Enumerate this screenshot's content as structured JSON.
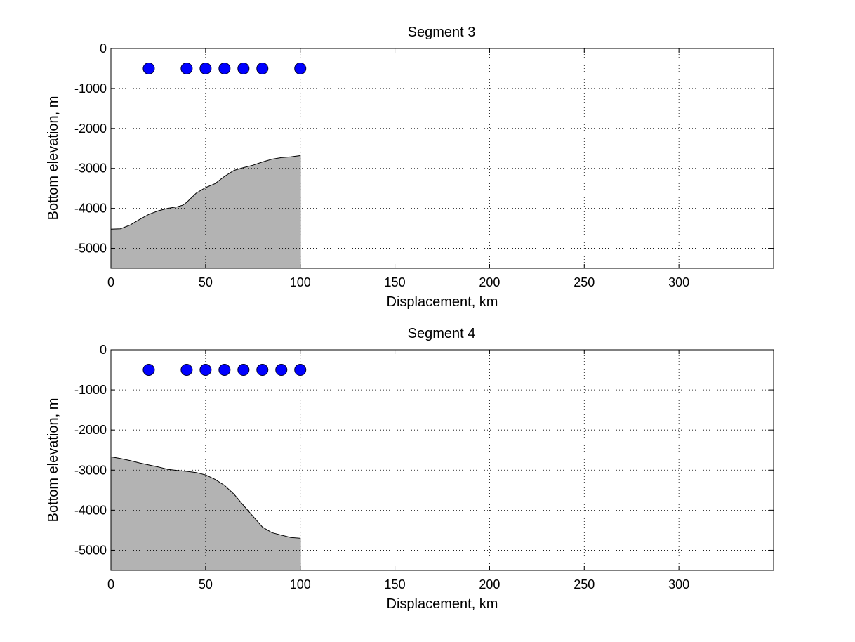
{
  "colors": {
    "terrain_fill": "#b3b3b3",
    "marker_fill": "#0000ff",
    "marker_edge": "#000033",
    "grid": "#000000"
  },
  "chart_data": [
    {
      "type": "area",
      "title": "Segment 3",
      "xlabel": "Displacement, km",
      "ylabel": "Bottom elevation, m",
      "xlim": [
        0,
        350
      ],
      "ylim": [
        -5500,
        0
      ],
      "xticks": [
        0,
        50,
        100,
        150,
        200,
        250,
        300
      ],
      "yticks": [
        0,
        -1000,
        -2000,
        -3000,
        -4000,
        -5000
      ],
      "grid": true,
      "legend": "none",
      "bathymetry": {
        "x": [
          0,
          5,
          10,
          15,
          20,
          25,
          30,
          35,
          38,
          40,
          45,
          50,
          55,
          60,
          65,
          70,
          75,
          80,
          85,
          90,
          95,
          100
        ],
        "y": [
          -4520,
          -4510,
          -4420,
          -4280,
          -4150,
          -4060,
          -4000,
          -3960,
          -3920,
          -3850,
          -3620,
          -3480,
          -3380,
          -3200,
          -3050,
          -2980,
          -2920,
          -2840,
          -2770,
          -2730,
          -2710,
          -2680
        ]
      },
      "stations": {
        "x": [
          20,
          40,
          50,
          60,
          70,
          80,
          100
        ],
        "y": [
          -500,
          -500,
          -500,
          -500,
          -500,
          -500,
          -500
        ]
      }
    },
    {
      "type": "area",
      "title": "Segment 4",
      "xlabel": "Displacement, km",
      "ylabel": "Bottom elevation, m",
      "xlim": [
        0,
        350
      ],
      "ylim": [
        -5500,
        0
      ],
      "xticks": [
        0,
        50,
        100,
        150,
        200,
        250,
        300
      ],
      "yticks": [
        0,
        -1000,
        -2000,
        -3000,
        -4000,
        -5000
      ],
      "grid": true,
      "legend": "none",
      "bathymetry": {
        "x": [
          0,
          5,
          10,
          15,
          20,
          25,
          30,
          35,
          40,
          45,
          50,
          55,
          60,
          65,
          70,
          75,
          80,
          85,
          90,
          95,
          100
        ],
        "y": [
          -2670,
          -2710,
          -2760,
          -2820,
          -2870,
          -2920,
          -2980,
          -3010,
          -3030,
          -3060,
          -3120,
          -3230,
          -3380,
          -3600,
          -3880,
          -4150,
          -4420,
          -4560,
          -4620,
          -4680,
          -4700
        ]
      },
      "stations": {
        "x": [
          20,
          40,
          50,
          60,
          70,
          80,
          90,
          100
        ],
        "y": [
          -500,
          -500,
          -500,
          -500,
          -500,
          -500,
          -500,
          -500
        ]
      }
    }
  ]
}
